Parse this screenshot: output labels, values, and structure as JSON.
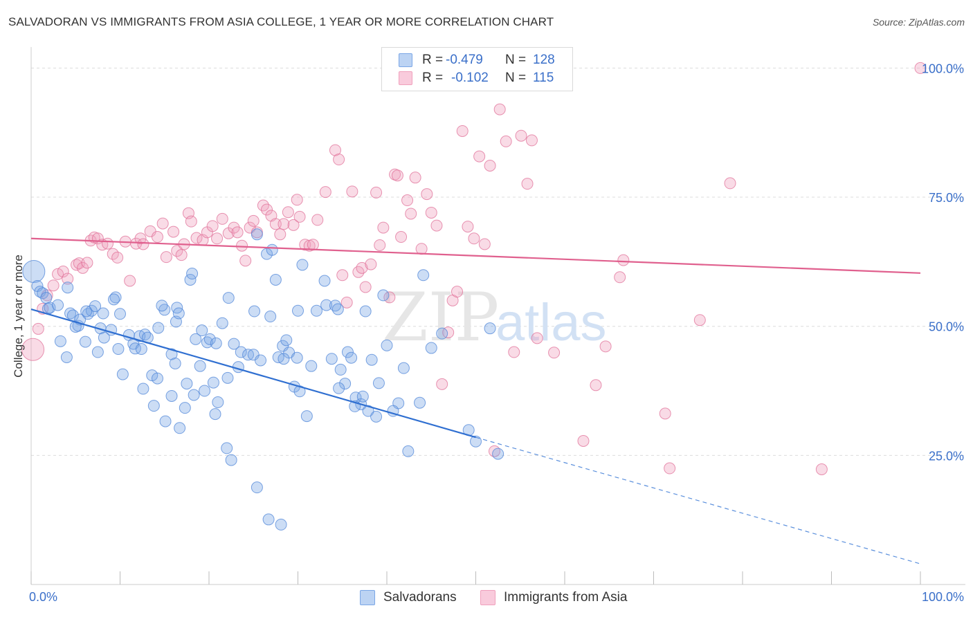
{
  "header": {
    "title": "SALVADORAN VS IMMIGRANTS FROM ASIA COLLEGE, 1 YEAR OR MORE CORRELATION CHART",
    "source": "Source: ZipAtlas.com"
  },
  "legend": {
    "r_label": "R =",
    "n_label": "N =",
    "items": [
      {
        "name": "Salvadorans",
        "r": "-0.479",
        "n": "128",
        "color": "#7aa6e6"
      },
      {
        "name": "Immigrants from Asia",
        "r": "-0.102",
        "n": "115",
        "color": "#f0a0bc"
      }
    ]
  },
  "watermark": {
    "zip": "ZIP",
    "atlas": "atlas"
  },
  "chart_data": {
    "type": "scatter",
    "title": "SALVADORAN VS IMMIGRANTS FROM ASIA COLLEGE, 1 YEAR OR MORE CORRELATION CHART",
    "xlabel": "",
    "ylabel": "College, 1 year or more",
    "xlim": [
      0,
      100
    ],
    "ylim": [
      0,
      103
    ],
    "x_tick_labels": [
      "0.0%",
      "100.0%"
    ],
    "y_tick_labels": [
      "25.0%",
      "50.0%",
      "75.0%",
      "100.0%"
    ],
    "y_ticks": [
      25,
      50,
      75,
      100
    ],
    "grid": true,
    "series": [
      {
        "name": "Salvadorans",
        "color": "#7aa6e6",
        "stroke": "#4f86d8",
        "trend": {
          "x0": 0,
          "y0": 53.3,
          "x1": 50,
          "y1": 28.5,
          "dash_to": 100,
          "dash_y": 4.0
        },
        "points": [
          [
            0.3,
            60.6
          ],
          [
            0.7,
            57.8
          ],
          [
            1.0,
            56.7
          ],
          [
            1.3,
            56.4
          ],
          [
            1.7,
            55.5
          ],
          [
            1.9,
            53.4
          ],
          [
            2.1,
            53.6
          ],
          [
            3.0,
            54.1
          ],
          [
            4.1,
            57.5
          ],
          [
            4.4,
            52.5
          ],
          [
            4.7,
            52.1
          ],
          [
            5.3,
            50.1
          ],
          [
            5.5,
            51.3
          ],
          [
            5.0,
            49.9
          ],
          [
            6.4,
            52.4
          ],
          [
            6.8,
            53.0
          ],
          [
            7.2,
            53.9
          ],
          [
            6.2,
            52.9
          ],
          [
            7.8,
            49.6
          ],
          [
            8.1,
            52.5
          ],
          [
            9.5,
            55.6
          ],
          [
            9.3,
            55.2
          ],
          [
            10.0,
            52.4
          ],
          [
            9.0,
            49.3
          ],
          [
            11.0,
            48.3
          ],
          [
            11.5,
            46.6
          ],
          [
            12.2,
            48.1
          ],
          [
            12.8,
            48.4
          ],
          [
            13.1,
            47.8
          ],
          [
            15.0,
            53.2
          ],
          [
            14.3,
            49.7
          ],
          [
            14.7,
            54.0
          ],
          [
            16.3,
            50.9
          ],
          [
            16.4,
            53.6
          ],
          [
            16.6,
            52.5
          ],
          [
            17.9,
            59.0
          ],
          [
            18.1,
            60.2
          ],
          [
            19.2,
            49.2
          ],
          [
            19.8,
            46.9
          ],
          [
            18.5,
            47.5
          ],
          [
            20.1,
            47.5
          ],
          [
            21.5,
            50.6
          ],
          [
            20.8,
            46.7
          ],
          [
            22.2,
            55.5
          ],
          [
            22.8,
            46.6
          ],
          [
            23.6,
            45.0
          ],
          [
            25.1,
            52.9
          ],
          [
            25.4,
            67.8
          ],
          [
            26.5,
            64.0
          ],
          [
            27.1,
            64.8
          ],
          [
            26.9,
            51.9
          ],
          [
            27.5,
            59.0
          ],
          [
            28.3,
            46.2
          ],
          [
            28.7,
            47.3
          ],
          [
            29.0,
            44.9
          ],
          [
            29.9,
            43.9
          ],
          [
            30.5,
            61.9
          ],
          [
            30.0,
            53.0
          ],
          [
            31.5,
            42.3
          ],
          [
            32.1,
            53.0
          ],
          [
            33.0,
            58.8
          ],
          [
            33.2,
            54.1
          ],
          [
            34.2,
            54.0
          ],
          [
            34.5,
            53.3
          ],
          [
            35.6,
            45.0
          ],
          [
            36.0,
            43.9
          ],
          [
            37.6,
            52.9
          ],
          [
            38.3,
            43.5
          ],
          [
            39.1,
            39.0
          ],
          [
            40.0,
            46.3
          ],
          [
            39.6,
            56.0
          ],
          [
            41.3,
            35.1
          ],
          [
            42.4,
            25.8
          ],
          [
            3.3,
            47.1
          ],
          [
            4.0,
            44.0
          ],
          [
            6.1,
            47.0
          ],
          [
            7.5,
            45.0
          ],
          [
            8.2,
            47.8
          ],
          [
            9.8,
            45.6
          ],
          [
            10.3,
            40.7
          ],
          [
            11.7,
            45.7
          ],
          [
            12.4,
            45.6
          ],
          [
            13.6,
            40.5
          ],
          [
            14.2,
            39.9
          ],
          [
            15.8,
            44.6
          ],
          [
            16.2,
            42.8
          ],
          [
            17.5,
            38.9
          ],
          [
            18.3,
            36.7
          ],
          [
            19.0,
            42.3
          ],
          [
            20.5,
            39.1
          ],
          [
            21.0,
            35.3
          ],
          [
            22.1,
            40.0
          ],
          [
            23.3,
            42.1
          ],
          [
            24.4,
            44.5
          ],
          [
            25.0,
            44.5
          ],
          [
            25.8,
            43.4
          ],
          [
            27.8,
            44.0
          ],
          [
            28.4,
            43.7
          ],
          [
            29.6,
            38.3
          ],
          [
            30.2,
            37.4
          ],
          [
            31.0,
            32.6
          ],
          [
            33.8,
            43.7
          ],
          [
            34.8,
            41.6
          ],
          [
            35.3,
            38.9
          ],
          [
            36.5,
            36.2
          ],
          [
            37.1,
            34.9
          ],
          [
            37.9,
            33.6
          ],
          [
            38.8,
            32.5
          ],
          [
            40.7,
            33.6
          ],
          [
            41.9,
            41.9
          ],
          [
            43.7,
            35.2
          ],
          [
            44.1,
            59.9
          ],
          [
            45.0,
            45.8
          ],
          [
            46.2,
            48.6
          ],
          [
            49.2,
            29.9
          ],
          [
            50.0,
            27.7
          ],
          [
            51.6,
            49.6
          ],
          [
            52.5,
            25.3
          ],
          [
            12.6,
            37.9
          ],
          [
            13.8,
            34.6
          ],
          [
            15.1,
            31.6
          ],
          [
            15.8,
            36.5
          ],
          [
            16.7,
            30.3
          ],
          [
            17.3,
            34.2
          ],
          [
            19.5,
            37.5
          ],
          [
            20.7,
            33.0
          ],
          [
            22.0,
            26.4
          ],
          [
            22.5,
            24.1
          ],
          [
            25.4,
            18.8
          ],
          [
            26.7,
            12.6
          ],
          [
            28.1,
            11.6
          ],
          [
            34.6,
            38.0
          ],
          [
            36.4,
            34.5
          ],
          [
            37.3,
            36.4
          ]
        ]
      },
      {
        "name": "Immigrants from Asia",
        "color": "#f0a0bc",
        "stroke": "#e07098",
        "trend": {
          "x0": 0,
          "y0": 67.0,
          "x1": 100,
          "y1": 60.3
        },
        "points": [
          [
            0.2,
            45.5
          ],
          [
            0.8,
            49.5
          ],
          [
            1.3,
            53.4
          ],
          [
            1.8,
            56.0
          ],
          [
            2.5,
            57.9
          ],
          [
            3.0,
            60.1
          ],
          [
            3.6,
            60.6
          ],
          [
            4.1,
            59.2
          ],
          [
            5.1,
            61.9
          ],
          [
            5.4,
            62.2
          ],
          [
            5.8,
            61.3
          ],
          [
            6.3,
            62.3
          ],
          [
            6.7,
            66.6
          ],
          [
            7.1,
            67.2
          ],
          [
            7.5,
            67.0
          ],
          [
            8.0,
            65.8
          ],
          [
            8.6,
            66.0
          ],
          [
            9.2,
            64.0
          ],
          [
            9.7,
            63.3
          ],
          [
            10.6,
            66.4
          ],
          [
            11.1,
            58.8
          ],
          [
            11.8,
            66.0
          ],
          [
            12.3,
            67.0
          ],
          [
            12.6,
            65.9
          ],
          [
            13.4,
            68.4
          ],
          [
            14.2,
            67.3
          ],
          [
            14.8,
            69.9
          ],
          [
            15.2,
            63.4
          ],
          [
            16.0,
            68.3
          ],
          [
            16.4,
            64.6
          ],
          [
            16.9,
            63.8
          ],
          [
            17.2,
            65.9
          ],
          [
            17.7,
            71.9
          ],
          [
            18.0,
            70.3
          ],
          [
            18.6,
            67.1
          ],
          [
            19.3,
            66.7
          ],
          [
            19.8,
            68.2
          ],
          [
            20.4,
            69.4
          ],
          [
            20.9,
            67.0
          ],
          [
            21.5,
            70.8
          ],
          [
            22.2,
            68.0
          ],
          [
            22.8,
            69.1
          ],
          [
            23.2,
            68.2
          ],
          [
            23.7,
            65.6
          ],
          [
            24.1,
            62.7
          ],
          [
            24.6,
            69.1
          ],
          [
            25.0,
            70.4
          ],
          [
            25.4,
            68.2
          ],
          [
            26.1,
            73.4
          ],
          [
            26.5,
            72.6
          ],
          [
            27.0,
            71.4
          ],
          [
            27.5,
            69.8
          ],
          [
            28.0,
            67.8
          ],
          [
            28.4,
            69.8
          ],
          [
            28.9,
            72.1
          ],
          [
            29.5,
            69.6
          ],
          [
            29.9,
            74.5
          ],
          [
            30.2,
            71.2
          ],
          [
            30.8,
            65.8
          ],
          [
            31.3,
            65.6
          ],
          [
            31.7,
            65.8
          ],
          [
            32.2,
            70.6
          ],
          [
            33.1,
            76.0
          ],
          [
            34.2,
            84.1
          ],
          [
            34.6,
            82.3
          ],
          [
            35.0,
            59.9
          ],
          [
            35.5,
            54.6
          ],
          [
            36.1,
            76.1
          ],
          [
            36.8,
            60.5
          ],
          [
            37.2,
            61.3
          ],
          [
            37.6,
            57.6
          ],
          [
            38.2,
            62.0
          ],
          [
            38.8,
            75.9
          ],
          [
            39.2,
            65.7
          ],
          [
            39.6,
            69.1
          ],
          [
            40.3,
            55.6
          ],
          [
            40.9,
            79.4
          ],
          [
            41.2,
            79.2
          ],
          [
            41.6,
            67.3
          ],
          [
            42.3,
            74.4
          ],
          [
            42.7,
            71.8
          ],
          [
            43.2,
            78.8
          ],
          [
            43.9,
            65.0
          ],
          [
            44.5,
            75.6
          ],
          [
            45.0,
            72.0
          ],
          [
            45.6,
            69.5
          ],
          [
            46.2,
            38.8
          ],
          [
            46.9,
            48.8
          ],
          [
            47.4,
            55.0
          ],
          [
            47.9,
            56.7
          ],
          [
            48.5,
            87.8
          ],
          [
            49.1,
            69.3
          ],
          [
            49.8,
            67.0
          ],
          [
            50.4,
            82.9
          ],
          [
            51.0,
            65.9
          ],
          [
            51.6,
            81.1
          ],
          [
            52.1,
            25.8
          ],
          [
            52.7,
            92.0
          ],
          [
            53.4,
            85.8
          ],
          [
            54.3,
            45.0
          ],
          [
            55.1,
            86.9
          ],
          [
            55.8,
            77.6
          ],
          [
            56.3,
            86.0
          ],
          [
            56.9,
            47.7
          ],
          [
            58.8,
            44.9
          ],
          [
            62.1,
            27.8
          ],
          [
            63.5,
            38.6
          ],
          [
            64.6,
            46.1
          ],
          [
            66.2,
            59.5
          ],
          [
            66.6,
            62.8
          ],
          [
            71.3,
            33.1
          ],
          [
            71.8,
            22.5
          ],
          [
            75.2,
            51.2
          ],
          [
            78.6,
            77.7
          ],
          [
            88.9,
            22.3
          ],
          [
            100.0,
            100.0
          ]
        ]
      }
    ]
  }
}
